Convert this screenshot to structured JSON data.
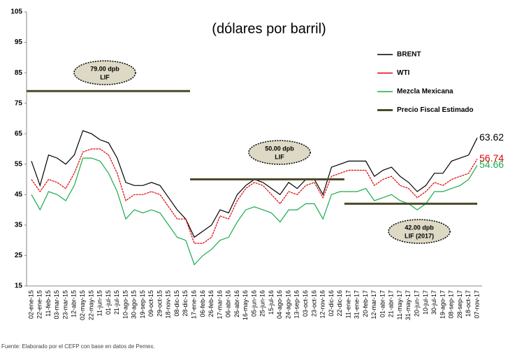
{
  "chart_data": {
    "type": "line",
    "title": "(dólares por barril)",
    "source": "Fuente: Elaborado por el CEFP con base en datos de Pemex.",
    "categories": [
      "02-ene-15",
      "22-ene-15",
      "11-feb-15",
      "03-mar-15",
      "23-mar-15",
      "12-abr-15",
      "02-may-15",
      "22-may-15",
      "11-jun-15",
      "01-jul-15",
      "21-jul-15",
      "10-ago-15",
      "30-ago-15",
      "19-sep-15",
      "09-oct-15",
      "29-oct-15",
      "18-nov-15",
      "08-dic-15",
      "28-dic-15",
      "17-ene-16",
      "06-feb-16",
      "26-feb-16",
      "17-mar-16",
      "06-abr-16",
      "26-abr-16",
      "16-may-16",
      "05-jun-16",
      "25-jun-16",
      "15-jul-16",
      "04-ago-16",
      "24-ago-16",
      "13-sep-16",
      "03-oct-16",
      "23-oct-16",
      "12-nov-16",
      "02-dic-16",
      "22-dic-16",
      "11-ene-17",
      "31-ene-17",
      "20-feb-17",
      "12-mar-17",
      "01-abr-17",
      "21-abr-17",
      "11-may-17",
      "31-may-17",
      "20-jun-17",
      "10-jul-17",
      "30-jul-17",
      "19-ago-17",
      "08-sep-17",
      "28-sep-17",
      "18-oct-17",
      "07-nov-17"
    ],
    "series": [
      {
        "name": "BRENT",
        "color": "#000000",
        "values": [
          56,
          48,
          58,
          57,
          55,
          58,
          66,
          65,
          63,
          62,
          57,
          49,
          48,
          48,
          49,
          48,
          44,
          40,
          37,
          31,
          33,
          35,
          40,
          39,
          45,
          48,
          50,
          49,
          47,
          45,
          49,
          47,
          50,
          50,
          45,
          54,
          55,
          56,
          56,
          56,
          51,
          53,
          54,
          51,
          49,
          46,
          48,
          52,
          52,
          56,
          57,
          58,
          63.62
        ]
      },
      {
        "name": "WTI",
        "color": "#e00000",
        "values": [
          50,
          46,
          50,
          49,
          47,
          52,
          59,
          60,
          60,
          58,
          52,
          43,
          45,
          45,
          46,
          45,
          41,
          37,
          37,
          29,
          29,
          31,
          38,
          37,
          43,
          47,
          49,
          48,
          45,
          42,
          46,
          45,
          48,
          49,
          44,
          51,
          52,
          53,
          53,
          53,
          48,
          50,
          51,
          48,
          47,
          44,
          46,
          49,
          48,
          50,
          51,
          52,
          56.74
        ]
      },
      {
        "name": "Mezcla Mexicana",
        "color": "#1aab4a",
        "values": [
          45,
          40,
          46,
          45,
          43,
          48,
          57,
          57,
          56,
          52,
          46,
          37,
          40,
          39,
          40,
          39,
          35,
          31,
          30,
          22,
          25,
          27,
          30,
          31,
          36,
          40,
          41,
          40,
          39,
          36,
          40,
          40,
          42,
          42,
          37,
          45,
          46,
          46,
          46,
          47,
          43,
          44,
          45,
          43,
          42,
          40,
          42,
          46,
          46,
          47,
          48,
          50,
          54.66
        ]
      },
      {
        "name": "Precio Fiscal Estimado",
        "color": "#4d4a2a",
        "values": [
          79,
          79,
          79,
          79,
          79,
          79,
          79,
          79,
          79,
          79,
          79,
          79,
          79,
          79,
          79,
          79,
          79,
          79,
          79,
          50,
          50,
          50,
          50,
          50,
          50,
          50,
          50,
          50,
          50,
          50,
          50,
          50,
          50,
          50,
          50,
          50,
          50,
          42,
          42,
          42,
          42,
          42,
          42,
          42,
          42,
          42,
          42,
          42,
          42,
          42,
          42,
          42,
          42
        ]
      }
    ],
    "annotations": [
      {
        "text": "79.00 dpb",
        "sub": "LIF"
      },
      {
        "text": "50.00 dpb",
        "sub": "LIF"
      },
      {
        "text": "42.00 dpb",
        "sub": "LIF (2017)"
      }
    ],
    "ylim": [
      15,
      105
    ],
    "yticks": [
      15,
      25,
      35,
      45,
      55,
      65,
      75,
      85,
      95,
      105
    ]
  }
}
